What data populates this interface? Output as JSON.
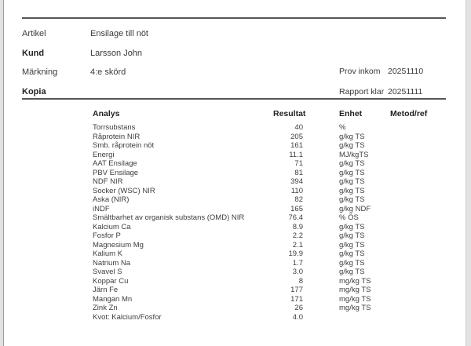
{
  "page": {
    "divider_color": "#57575a",
    "text_color": "#3a3a3a",
    "edge_color": "#e2e2e2"
  },
  "header": {
    "fields": [
      {
        "label": "Artikel",
        "value": "Ensilage till nöt"
      },
      {
        "label": "Kund",
        "value": "Larsson John"
      },
      {
        "label": "Märkning",
        "value": "4:e skörd"
      },
      {
        "label": "Kopia",
        "value": ""
      }
    ],
    "meta": [
      {
        "label": "Prov inkom",
        "value": "20251110"
      },
      {
        "label": "Rapport klar",
        "value": "20251111"
      }
    ]
  },
  "table": {
    "columns": [
      "Analys",
      "Resultat",
      "Enhet",
      "Metod/ref"
    ],
    "rows": [
      [
        "Torrsubstans",
        "40",
        "%",
        ""
      ],
      [
        "Råprotein NIR",
        "205",
        "g/kg TS",
        ""
      ],
      [
        "Smb. råprotein nöt",
        "161",
        "g/kg TS",
        ""
      ],
      [
        "Energi",
        "11.1",
        "MJ/kgTS",
        ""
      ],
      [
        "AAT Ensilage",
        "71",
        "g/kg TS",
        ""
      ],
      [
        "PBV Ensilage",
        "81",
        "g/kg TS",
        ""
      ],
      [
        "NDF NIR",
        "394",
        "g/kg TS",
        ""
      ],
      [
        "Socker (WSC) NIR",
        "110",
        "g/kg TS",
        ""
      ],
      [
        "Aska (NIR)",
        "82",
        "g/kg TS",
        ""
      ],
      [
        "iNDF",
        "165",
        "g/kg NDF",
        ""
      ],
      [
        "Smältbarhet av organisk substans (OMD) NIR",
        "76.4",
        "% ÖS",
        ""
      ],
      [
        "Kalcium Ca",
        "8.9",
        "g/kg TS",
        ""
      ],
      [
        "Fosfor P",
        "2.2",
        "g/kg TS",
        ""
      ],
      [
        "Magnesium Mg",
        "2.1",
        "g/kg TS",
        ""
      ],
      [
        "Kalium K",
        "19.9",
        "g/kg TS",
        ""
      ],
      [
        "Natrium Na",
        "1.7",
        "g/kg TS",
        ""
      ],
      [
        "Svavel S",
        "3.0",
        "g/kg TS",
        ""
      ],
      [
        "Koppar Cu",
        "8",
        "mg/kg TS",
        ""
      ],
      [
        "Järn Fe",
        "177",
        "mg/kg TS",
        ""
      ],
      [
        "Mangan Mn",
        "171",
        "mg/kg TS",
        ""
      ],
      [
        "Zink Zn",
        "26",
        "mg/kg TS",
        ""
      ],
      [
        "Kvot: Kalcium/Fosfor",
        "4.0",
        "",
        ""
      ]
    ]
  }
}
